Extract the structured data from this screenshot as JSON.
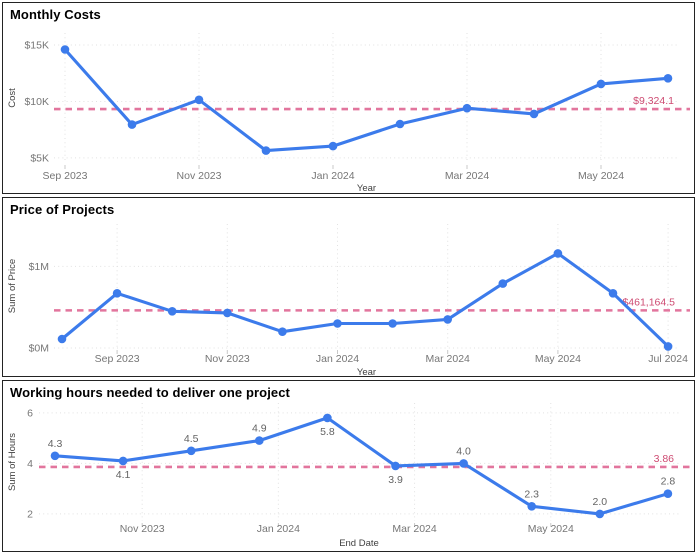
{
  "palette": {
    "line_color": "#3C7BEB",
    "marker_color": "#3C7BEB",
    "ref_line_color": "#E2759D",
    "ref_label_color": "#CE4B72",
    "grid_color": "#E2E2E2",
    "axis_tick_mark_color": "#C9C9C9",
    "tick_label_color": "#767676",
    "axis_title_color": "#3F3F3F",
    "data_label_color": "#646464",
    "title_color": "#000000",
    "panel_border_color": "#232323",
    "background": "#FFFFFF"
  },
  "chart_data": [
    {
      "type": "line",
      "title": "Monthly Costs",
      "xlabel": "Year",
      "ylabel": "Cost",
      "x": [
        "Sep 2023",
        "Oct 2023",
        "Nov 2023",
        "Dec 2023",
        "Jan 2024",
        "Feb 2024",
        "Mar 2024",
        "Apr 2024",
        "May 2024",
        "Jun 2024"
      ],
      "values": [
        14600,
        7950,
        10150,
        5650,
        6050,
        8000,
        9400,
        8900,
        11550,
        12050
      ],
      "ylim": [
        4550,
        16060
      ],
      "grid": true,
      "legend": "none",
      "y_ticks": [
        {
          "value": 5000,
          "label": "$5K"
        },
        {
          "value": 10000,
          "label": "$10K"
        },
        {
          "value": 15000,
          "label": "$15K"
        }
      ],
      "x_ticks": [
        {
          "index": 0,
          "label": "Sep 2023"
        },
        {
          "index": 2,
          "label": "Nov 2023"
        },
        {
          "index": 4,
          "label": "Jan 2024"
        },
        {
          "index": 6,
          "label": "Mar 2024"
        },
        {
          "index": 8,
          "label": "May 2024"
        }
      ],
      "ref_line": {
        "value": 9324.1,
        "label": "$9,324.1"
      },
      "data_labels": []
    },
    {
      "type": "line",
      "title": "Price of Projects",
      "xlabel": "Year",
      "ylabel": "Sum of Price",
      "x": [
        "Aug 2023",
        "Sep 2023",
        "Oct 2023",
        "Nov 2023",
        "Dec 2023",
        "Jan 2024",
        "Feb 2024",
        "Mar 2024",
        "Apr 2024",
        "May 2024",
        "Jun 2024",
        "Jul 2024"
      ],
      "values": [
        110000,
        670000,
        450000,
        430000,
        200000,
        300000,
        300000,
        350000,
        790000,
        1160000,
        670000,
        20000
      ],
      "ylim": [
        0,
        1520000
      ],
      "grid": true,
      "legend": "none",
      "y_ticks": [
        {
          "value": 0,
          "label": "$0M"
        },
        {
          "value": 1000000,
          "label": "$1M"
        }
      ],
      "x_ticks": [
        {
          "index": 1,
          "label": "Sep 2023"
        },
        {
          "index": 3,
          "label": "Nov 2023"
        },
        {
          "index": 5,
          "label": "Jan 2024"
        },
        {
          "index": 7,
          "label": "Mar 2024"
        },
        {
          "index": 9,
          "label": "May 2024"
        },
        {
          "index": 11,
          "label": "Jul 2024"
        }
      ],
      "ref_line": {
        "value": 461164.5,
        "label": "$461,164.5"
      },
      "data_labels": []
    },
    {
      "type": "line",
      "title": "Working hours needed to deliver one project",
      "xlabel": "End Date",
      "ylabel": "Sum of Hours",
      "x": [
        "Oct 2023",
        "Nov 2023",
        "Dec 2023",
        "Jan 2024",
        "Feb 2024",
        "Mar 2024",
        "Apr 2024",
        "May 2024",
        "Jun 2024",
        "Jul 2024"
      ],
      "values": [
        4.3,
        4.1,
        4.5,
        4.9,
        5.8,
        3.9,
        4.0,
        2.3,
        2.0,
        2.8
      ],
      "ylim": [
        1.72,
        6.39
      ],
      "grid": true,
      "legend": "none",
      "y_ticks": [
        {
          "value": 2,
          "label": "2"
        },
        {
          "value": 4,
          "label": "4"
        },
        {
          "value": 6,
          "label": "6"
        }
      ],
      "x_ticks": [
        {
          "index": 1,
          "label": "Nov 2023"
        },
        {
          "index": 3,
          "label": "Jan 2024"
        },
        {
          "index": 5,
          "label": "Mar 2024"
        },
        {
          "index": 7,
          "label": "May 2024"
        }
      ],
      "ref_line": {
        "value": 3.86,
        "label": "3.86"
      },
      "data_labels": [
        {
          "text": "4.3",
          "placement": "above"
        },
        {
          "text": "4.1",
          "placement": "below"
        },
        {
          "text": "4.5",
          "placement": "above"
        },
        {
          "text": "4.9",
          "placement": "above"
        },
        {
          "text": "5.8",
          "placement": "below"
        },
        {
          "text": "3.9",
          "placement": "below"
        },
        {
          "text": "4.0",
          "placement": "above"
        },
        {
          "text": "2.3",
          "placement": "above"
        },
        {
          "text": "2.0",
          "placement": "above"
        },
        {
          "text": "2.8",
          "placement": "above"
        }
      ]
    }
  ]
}
